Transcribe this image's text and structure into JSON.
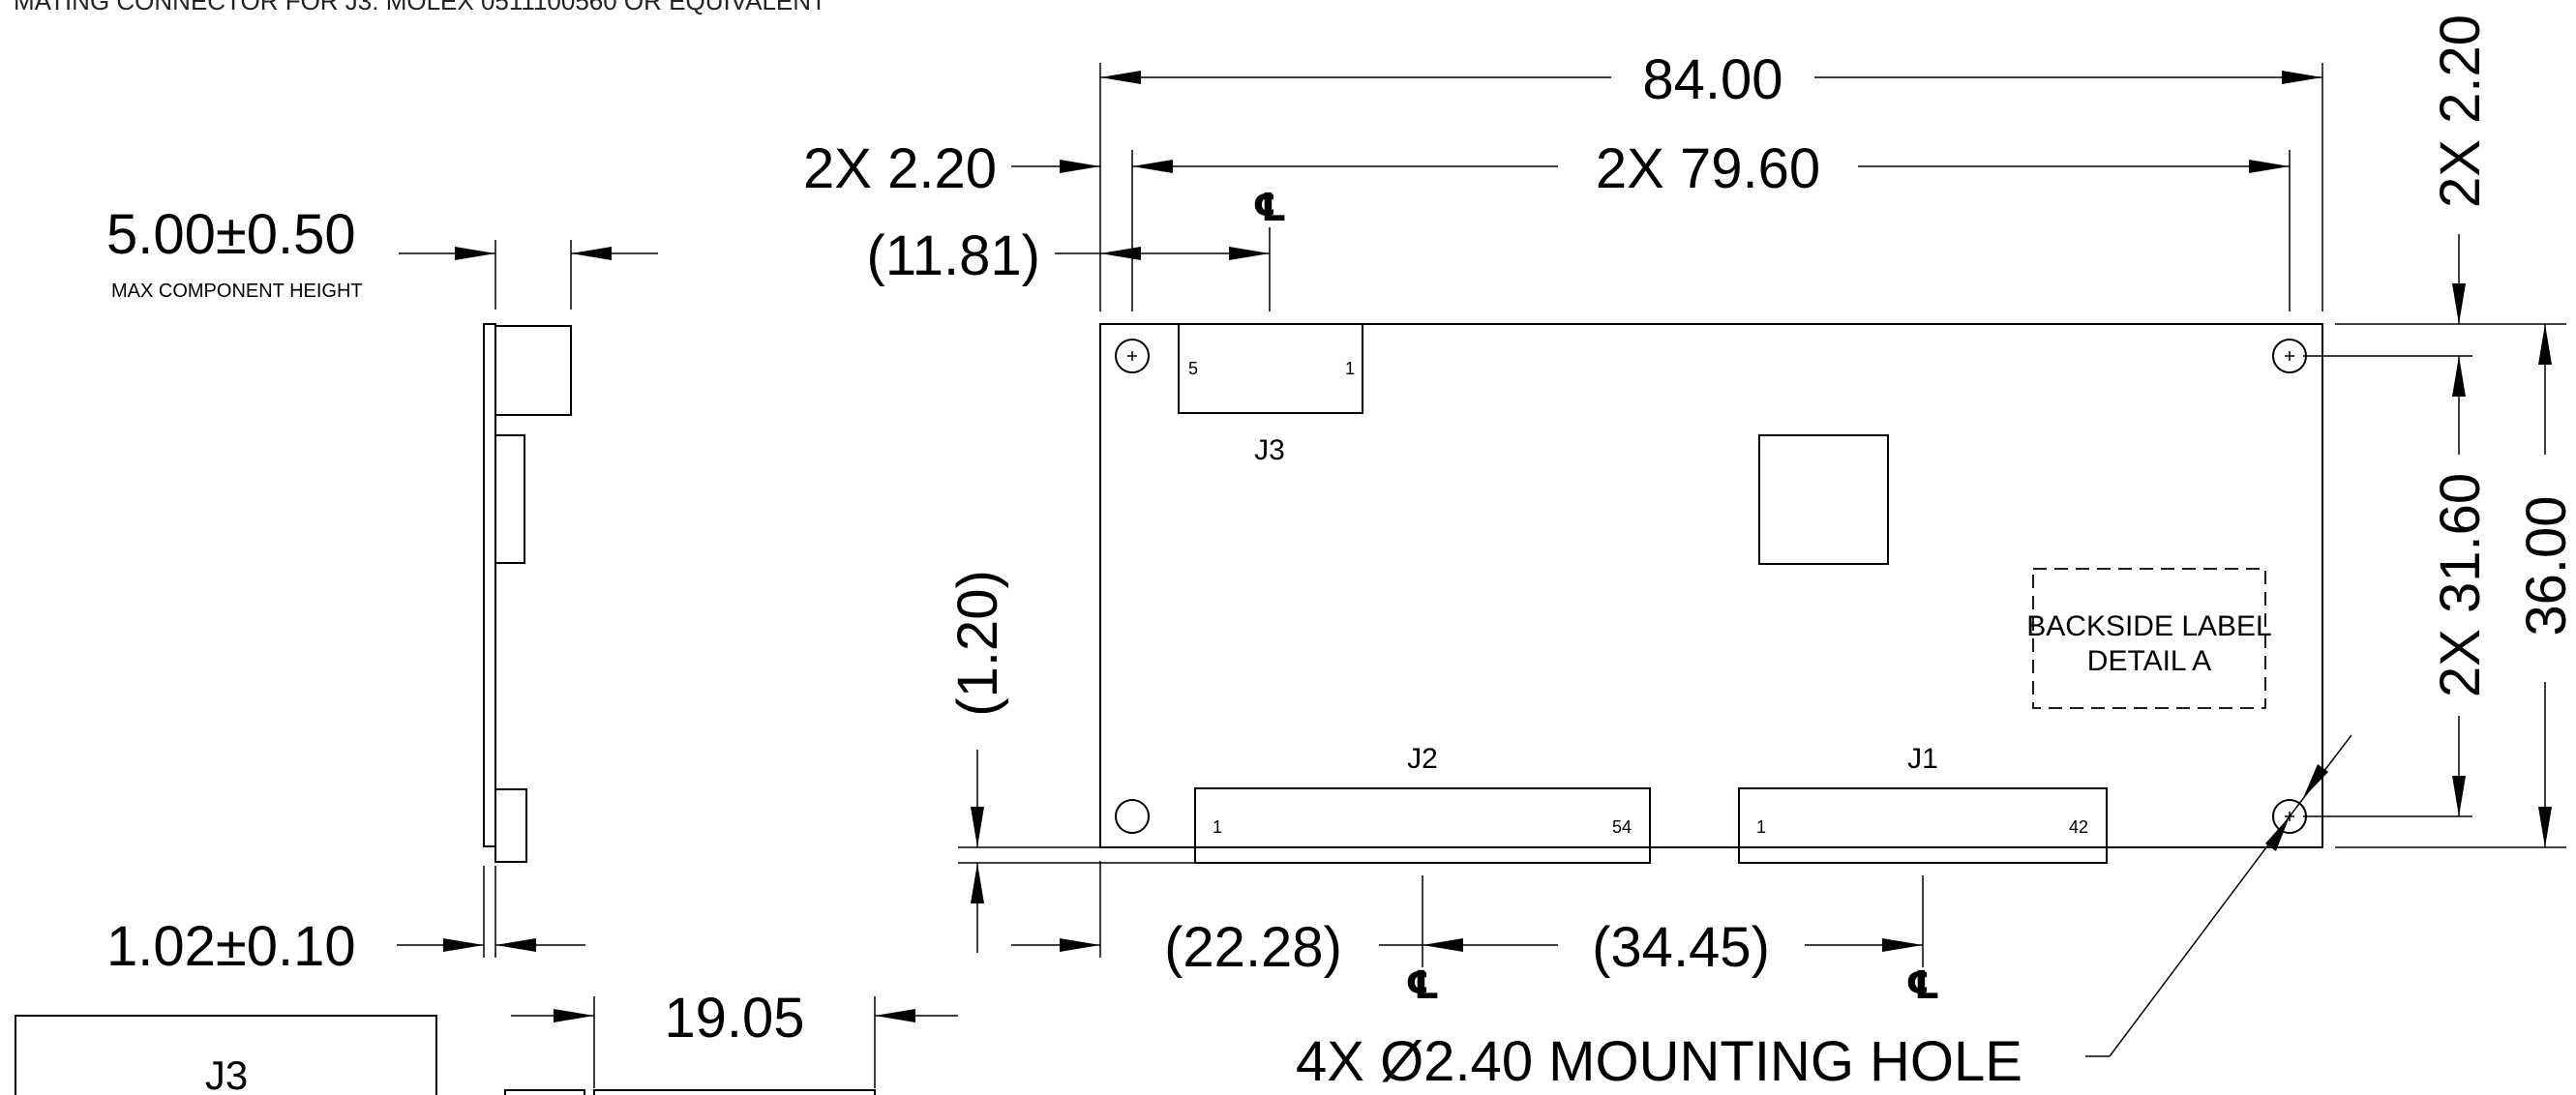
{
  "top_note": "MATING CONNECTOR FOR J3: MOLEX 0511100560 OR EQUIVALENT",
  "side_view": {
    "height_dim": "5.00±0.50",
    "height_note": "MAX COMPONENT HEIGHT",
    "thickness_dim": "1.02±0.10"
  },
  "board": {
    "overall_width": "84.00",
    "hole_offset": "2X 2.20",
    "hole_spacing": "2X 79.60",
    "j3_offset": "(11.81)",
    "overall_height": "36.00",
    "hole_vertical_spacing": "2X 31.60",
    "hole_vertical_offset": "2X 2.20",
    "connector_offset": "(1.20)",
    "j2_center_offset": "(22.28)",
    "j1_j2_spacing": "(34.45)",
    "mounting_hole_callout": "4X Ø2.40 MOUNTING HOLE",
    "centerline_symbol": "℄",
    "label_area_line1": "BACKSIDE LABEL",
    "label_area_line2": "DETAIL A"
  },
  "connectors": {
    "j3": {
      "name": "J3",
      "pin_first": "5",
      "pin_last": "1"
    },
    "j2": {
      "name": "J2",
      "pin_first": "1",
      "pin_last": "54"
    },
    "j1": {
      "name": "J1",
      "pin_first": "1",
      "pin_last": "42"
    }
  },
  "detail_view": {
    "connector_name": "J3",
    "width_dim": "19.05"
  }
}
